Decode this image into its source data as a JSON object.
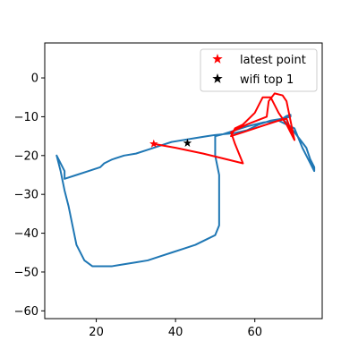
{
  "chart_data": {
    "type": "scatter",
    "title": "",
    "xlabel": "",
    "ylabel": "",
    "xlim": [
      7,
      77
    ],
    "ylim": [
      -62,
      9
    ],
    "xticks": [
      20,
      40,
      60
    ],
    "yticks": [
      0,
      -10,
      -20,
      -30,
      -40,
      -50,
      -60
    ],
    "grid": false,
    "legend_position": "top-right",
    "series": [
      {
        "kind": "line",
        "color": "#1f77b4",
        "x": [
          10,
          12,
          12,
          15,
          18,
          21,
          22,
          24,
          27,
          30,
          33,
          36,
          39,
          42,
          45,
          48,
          50,
          52,
          55,
          58,
          61,
          64,
          67,
          69,
          69,
          68,
          67,
          70,
          73,
          74,
          75,
          75,
          74,
          72,
          70,
          68,
          66,
          62,
          58,
          55,
          52,
          50,
          50,
          51,
          51,
          51,
          50,
          48,
          45,
          42,
          39,
          36,
          33,
          30,
          27,
          24,
          21,
          19,
          17,
          15,
          14,
          13,
          12,
          11,
          10
        ],
        "y": [
          -20,
          -24,
          -26,
          -25,
          -24,
          -23,
          -22,
          -21,
          -20,
          -19.5,
          -18.5,
          -17.5,
          -16.5,
          -16,
          -15.5,
          -15,
          -14.7,
          -14.5,
          -14.2,
          -13.5,
          -12,
          -11,
          -10.5,
          -10,
          -9.5,
          -9.8,
          -10.5,
          -14,
          -18,
          -21,
          -23,
          -24,
          -22,
          -18,
          -13,
          -12,
          -11,
          -11.5,
          -12.5,
          -13.5,
          -14.5,
          -15,
          -20,
          -25,
          -32,
          -38,
          -40.5,
          -41.5,
          -43,
          -44,
          -45,
          -46,
          -47,
          -47.5,
          -48,
          -48.5,
          -48.5,
          -48.5,
          -47,
          -43,
          -38,
          -33,
          -29,
          -24,
          -20
        ]
      },
      {
        "kind": "line",
        "color": "#ff0000",
        "x": [
          34.5,
          40,
          47,
          57,
          55,
          54,
          58,
          63,
          63.5,
          65,
          67,
          68,
          70,
          68,
          66,
          64,
          62,
          60,
          57,
          55,
          54,
          57,
          60,
          63,
          66,
          68,
          70
        ],
        "y": [
          -17,
          -18,
          -19.5,
          -22,
          -17,
          -14,
          -12,
          -10,
          -6,
          -4,
          -4.5,
          -6,
          -16,
          -12,
          -9,
          -5,
          -5,
          -9,
          -12,
          -13,
          -15,
          -14,
          -13,
          -12,
          -11,
          -10.5,
          -16
        ]
      },
      {
        "kind": "scatter",
        "marker": "star",
        "name": "latest point",
        "color": "#ff0000",
        "x": [
          34.5
        ],
        "y": [
          -17
        ]
      },
      {
        "kind": "scatter",
        "marker": "star",
        "name": "wifi top 1",
        "color": "#000000",
        "x": [
          43
        ],
        "y": [
          -16.8
        ]
      }
    ]
  }
}
